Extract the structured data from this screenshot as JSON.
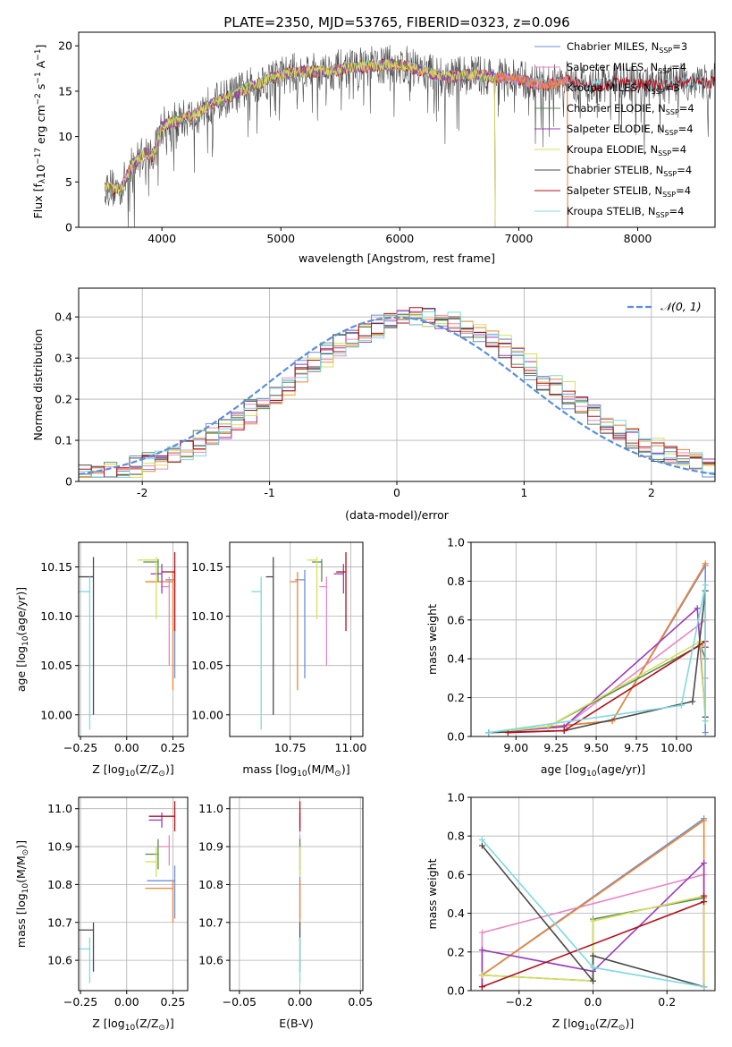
{
  "figure": {
    "title": "PLATE=2350, MJD=53765, FIBERID=0323, z=0.096",
    "colors": {
      "Chabrier MILES": "#6f8fd8",
      "Salpeter MILES": "#e986c4",
      "Kroupa MILES": "#ee8530",
      "Chabrier ELODIE": "#5a8a5a",
      "Salpeter ELODIE": "#9a3bbc",
      "Kroupa ELODIE": "#d4e05a",
      "Chabrier STELIB": "#4a4a4a",
      "Salpeter STELIB": "#b0101a",
      "Kroupa STELIB": "#7dd9e0",
      "normal": "#5b8fd8"
    }
  },
  "chart_data": [
    {
      "id": "spectrum",
      "type": "line",
      "xlabel": "wavelength [Angstrom, rest frame]",
      "ylabel": "Flux [f",
      "ylabel_parts": [
        "Flux [f",
        "λ",
        "10",
        "−17",
        " erg cm",
        "−2",
        " s",
        "−1",
        " A",
        "−1",
        "]"
      ],
      "xlim": [
        3300,
        8650
      ],
      "ylim": [
        0,
        21.5
      ],
      "xticks": [
        4000,
        5000,
        6000,
        7000,
        8000
      ],
      "yticks": [
        0,
        5,
        10,
        15,
        20
      ],
      "legend_position": "top-right",
      "legend": [
        {
          "name": "Chabrier MILES",
          "nssp": "3"
        },
        {
          "name": "Salpeter MILES",
          "nssp": "4"
        },
        {
          "name": "Kroupa MILES",
          "nssp": "3"
        },
        {
          "name": "Chabrier ELODIE",
          "nssp": "4"
        },
        {
          "name": "Salpeter ELODIE",
          "nssp": "4"
        },
        {
          "name": "Kroupa ELODIE",
          "nssp": "4"
        },
        {
          "name": "Chabrier STELIB",
          "nssp": "4"
        },
        {
          "name": "Salpeter STELIB",
          "nssp": "4"
        },
        {
          "name": "Kroupa STELIB",
          "nssp": "4"
        }
      ],
      "continuum": [
        [
          3520,
          4.5
        ],
        [
          3650,
          4.2
        ],
        [
          3750,
          6.8
        ],
        [
          3850,
          8.2
        ],
        [
          3930,
          7.8
        ],
        [
          4000,
          11.2
        ],
        [
          4100,
          11.6
        ],
        [
          4250,
          12.2
        ],
        [
          4400,
          13.5
        ],
        [
          4600,
          14.6
        ],
        [
          4800,
          15.8
        ],
        [
          5000,
          16.8
        ],
        [
          5200,
          17.2
        ],
        [
          5400,
          17.2
        ],
        [
          5600,
          17.6
        ],
        [
          5800,
          17.8
        ],
        [
          6000,
          18.0
        ],
        [
          6200,
          17.2
        ],
        [
          6400,
          16.5
        ],
        [
          6600,
          16.9
        ],
        [
          6800,
          16.5
        ],
        [
          7000,
          16.3
        ],
        [
          7200,
          15.6
        ],
        [
          7400,
          16.2
        ],
        [
          7600,
          15.5
        ],
        [
          7800,
          15.9
        ],
        [
          8100,
          15.6
        ],
        [
          8400,
          16.0
        ]
      ]
    },
    {
      "id": "residuals",
      "type": "bar",
      "xlabel": "(data-model)/error",
      "ylabel": "Normed distribution",
      "xlim": [
        -2.5,
        2.5
      ],
      "ylim": [
        0,
        0.47
      ],
      "xticks": [
        -2,
        -1,
        0,
        1,
        2
      ],
      "yticks": [
        0.0,
        0.1,
        0.2,
        0.3,
        0.4
      ],
      "legend": "𝒩(0, 1)",
      "legend_position": "top-right",
      "grid": true
    },
    {
      "id": "age-Z",
      "type": "scatter",
      "xlabel": "Z [log",
      "xlabel_parts": [
        "Z [log",
        "10",
        "(Z/Z",
        "⊙",
        ")]"
      ],
      "ylabel_parts": [
        "age  [log",
        "10",
        "(age/yr)]"
      ],
      "xlim": [
        -0.26,
        0.33
      ],
      "ylim": [
        9.978,
        10.175
      ],
      "xticks": [
        -0.25,
        0.0,
        0.25
      ],
      "xtick_labels": [
        "−0.25",
        "0.00",
        "0.25"
      ],
      "yticks": [
        10.0,
        10.05,
        10.1,
        10.15
      ],
      "ytick_labels": [
        "10.00",
        "10.05",
        "10.10",
        "10.15"
      ],
      "grid": true,
      "points": [
        {
          "model": "Chabrier MILES",
          "x": 0.26,
          "y": 10.137,
          "xerr": 0.05,
          "yerr": [
            0.1,
            0.01
          ]
        },
        {
          "model": "Salpeter MILES",
          "x": 0.23,
          "y": 10.13,
          "xerr": 0.04,
          "yerr": [
            0.08,
            0.01
          ]
        },
        {
          "model": "Kroupa MILES",
          "x": 0.25,
          "y": 10.135,
          "xerr": 0.15,
          "yerr": [
            0.11,
            0.01
          ]
        },
        {
          "model": "Chabrier ELODIE",
          "x": 0.17,
          "y": 10.155,
          "xerr": 0.08,
          "yerr": [
            0.02,
            0.003
          ]
        },
        {
          "model": "Salpeter ELODIE",
          "x": 0.19,
          "y": 10.143,
          "xerr": 0.06,
          "yerr": [
            0.02,
            0.01
          ]
        },
        {
          "model": "Kroupa ELODIE",
          "x": 0.16,
          "y": 10.157,
          "xerr": 0.1,
          "yerr": [
            0.06,
            0.003
          ]
        },
        {
          "model": "Chabrier STELIB",
          "x": -0.18,
          "y": 10.14,
          "xerr": 0.28,
          "yerr": [
            0.14,
            0.02
          ]
        },
        {
          "model": "Salpeter STELIB",
          "x": 0.26,
          "y": 10.145,
          "xerr": 0.07,
          "yerr": [
            0.06,
            0.02
          ]
        },
        {
          "model": "Kroupa STELIB",
          "x": -0.2,
          "y": 10.125,
          "xerr": 0.27,
          "yerr": [
            0.14,
            0.015
          ]
        }
      ]
    },
    {
      "id": "age-mass",
      "type": "scatter",
      "xlabel_parts": [
        "mass [log",
        "10",
        "(M/M",
        "⊙",
        ")]"
      ],
      "xlim": [
        10.5,
        11.05
      ],
      "ylim": [
        9.978,
        10.175
      ],
      "xticks": [
        10.75,
        11.0
      ],
      "xtick_labels": [
        "10.75",
        "11.00"
      ],
      "yticks": [
        10.0,
        10.05,
        10.1,
        10.15
      ],
      "ytick_labels": [
        "10.00",
        "10.05",
        "10.10",
        "10.15"
      ],
      "grid": true,
      "points": [
        {
          "model": "Chabrier MILES",
          "x": 10.81,
          "y": 10.137,
          "xerr": 0.04,
          "yerr": [
            0.1,
            0.01
          ]
        },
        {
          "model": "Salpeter MILES",
          "x": 10.9,
          "y": 10.13,
          "xerr": 0.03,
          "yerr": [
            0.08,
            0.01
          ]
        },
        {
          "model": "Kroupa MILES",
          "x": 10.78,
          "y": 10.135,
          "xerr": 0.03,
          "yerr": [
            0.11,
            0.01
          ]
        },
        {
          "model": "Chabrier ELODIE",
          "x": 10.88,
          "y": 10.155,
          "xerr": 0.04,
          "yerr": [
            0.02,
            0.003
          ]
        },
        {
          "model": "Salpeter ELODIE",
          "x": 10.97,
          "y": 10.143,
          "xerr": 0.04,
          "yerr": [
            0.02,
            0.01
          ]
        },
        {
          "model": "Kroupa ELODIE",
          "x": 10.86,
          "y": 10.157,
          "xerr": 0.04,
          "yerr": [
            0.06,
            0.003
          ]
        },
        {
          "model": "Chabrier STELIB",
          "x": 10.68,
          "y": 10.14,
          "xerr": 0.03,
          "yerr": [
            0.14,
            0.02
          ]
        },
        {
          "model": "Salpeter STELIB",
          "x": 10.98,
          "y": 10.145,
          "xerr": 0.04,
          "yerr": [
            0.06,
            0.02
          ]
        },
        {
          "model": "Kroupa STELIB",
          "x": 10.63,
          "y": 10.125,
          "xerr": 0.04,
          "yerr": [
            0.14,
            0.015
          ]
        }
      ]
    },
    {
      "id": "massweight-age",
      "type": "line",
      "xlabel_parts": [
        "age  [log",
        "10",
        "(age/yr)]"
      ],
      "ylabel": "mass weight",
      "xlim": [
        8.72,
        10.24
      ],
      "ylim": [
        0,
        1.0
      ],
      "xticks": [
        9.0,
        9.25,
        9.5,
        9.75,
        10.0
      ],
      "xtick_labels": [
        "9.00",
        "9.25",
        "9.50",
        "9.75",
        "10.00"
      ],
      "yticks": [
        0.0,
        0.2,
        0.4,
        0.6,
        0.8,
        1.0
      ],
      "ytick_labels": [
        "0.0",
        "0.2",
        "0.4",
        "0.6",
        "0.8",
        "1.0"
      ],
      "grid": true,
      "series": [
        {
          "model": "Chabrier MILES",
          "x": [
            8.83,
            9.6,
            10.18,
            10.18
          ],
          "y": [
            0.02,
            0.08,
            0.88,
            0.02
          ]
        },
        {
          "model": "Salpeter MILES",
          "x": [
            8.83,
            9.3,
            10.18,
            10.18
          ],
          "y": [
            0.02,
            0.05,
            0.6,
            0.3
          ]
        },
        {
          "model": "Kroupa MILES",
          "x": [
            8.83,
            9.6,
            10.18
          ],
          "y": [
            0.02,
            0.08,
            0.89
          ]
        },
        {
          "model": "Chabrier ELODIE",
          "x": [
            8.83,
            9.2,
            10.15,
            10.18
          ],
          "y": [
            0.02,
            0.05,
            0.47,
            0.4
          ]
        },
        {
          "model": "Salpeter ELODIE",
          "x": [
            8.83,
            9.3,
            10.13,
            10.18
          ],
          "y": [
            0.02,
            0.05,
            0.66,
            0.1
          ]
        },
        {
          "model": "Kroupa ELODIE",
          "x": [
            8.83,
            9.2,
            10.15,
            10.18
          ],
          "y": [
            0.02,
            0.05,
            0.49,
            0.08
          ]
        },
        {
          "model": "Chabrier STELIB",
          "x": [
            8.83,
            9.3,
            10.1,
            10.18,
            10.18
          ],
          "y": [
            0.02,
            0.03,
            0.18,
            0.75,
            0.1
          ]
        },
        {
          "model": "Salpeter STELIB",
          "x": [
            8.95,
            9.3,
            10.18,
            10.18
          ],
          "y": [
            0.02,
            0.03,
            0.49,
            0.46
          ]
        },
        {
          "model": "Kroupa STELIB",
          "x": [
            8.83,
            10.03,
            10.18,
            10.18
          ],
          "y": [
            0.02,
            0.16,
            0.78,
            0.08
          ]
        }
      ]
    },
    {
      "id": "mass-Z",
      "type": "scatter",
      "xlabel_parts": [
        "Z [log",
        "10",
        "(Z/Z",
        "⊙",
        ")]"
      ],
      "ylabel_parts": [
        "mass [log",
        "10",
        "(M/M",
        "⊙",
        ")]"
      ],
      "xlim": [
        -0.26,
        0.33
      ],
      "ylim": [
        10.52,
        11.03
      ],
      "xticks": [
        -0.25,
        0.0,
        0.25
      ],
      "xtick_labels": [
        "−0.25",
        "0.00",
        "0.25"
      ],
      "yticks": [
        10.6,
        10.7,
        10.8,
        10.9,
        11.0
      ],
      "ytick_labels": [
        "10.6",
        "10.7",
        "10.8",
        "10.9",
        "11.0"
      ],
      "grid": true,
      "points": [
        {
          "model": "Chabrier MILES",
          "x": 0.26,
          "y": 10.81,
          "xerr": 0.15,
          "yerr": [
            0.1,
            0.04
          ]
        },
        {
          "model": "Salpeter MILES",
          "x": 0.23,
          "y": 10.9,
          "xerr": 0.06,
          "yerr": [
            0.05,
            0.03
          ]
        },
        {
          "model": "Kroupa MILES",
          "x": 0.25,
          "y": 10.79,
          "xerr": 0.15,
          "yerr": [
            0.09,
            0.02
          ]
        },
        {
          "model": "Chabrier ELODIE",
          "x": 0.17,
          "y": 10.88,
          "xerr": 0.07,
          "yerr": [
            0.04,
            0.04
          ]
        },
        {
          "model": "Salpeter ELODIE",
          "x": 0.19,
          "y": 10.97,
          "xerr": 0.07,
          "yerr": [
            0.02,
            0.02
          ]
        },
        {
          "model": "Kroupa ELODIE",
          "x": 0.16,
          "y": 10.86,
          "xerr": 0.06,
          "yerr": [
            0.04,
            0.04
          ]
        },
        {
          "model": "Chabrier STELIB",
          "x": -0.18,
          "y": 10.68,
          "xerr": 0.28,
          "yerr": [
            0.11,
            0.02
          ]
        },
        {
          "model": "Salpeter STELIB",
          "x": 0.26,
          "y": 10.98,
          "xerr": 0.14,
          "yerr": [
            0.04,
            0.04
          ]
        },
        {
          "model": "Kroupa STELIB",
          "x": -0.2,
          "y": 10.63,
          "xerr": 0.3,
          "yerr": [
            0.09,
            0.03
          ]
        }
      ]
    },
    {
      "id": "mass-ebv",
      "type": "scatter",
      "xlabel": "E(B-V)",
      "xlim": [
        -0.058,
        0.052
      ],
      "ylim": [
        10.52,
        11.03
      ],
      "xticks": [
        -0.05,
        0.0,
        0.05
      ],
      "xtick_labels": [
        "−0.05",
        "0.00",
        "0.05"
      ],
      "yticks": [
        10.6,
        10.7,
        10.8,
        10.9,
        11.0
      ],
      "ytick_labels": [
        "10.6",
        "10.7",
        "10.8",
        "10.9",
        "11.0"
      ],
      "grid": true,
      "points": [
        {
          "model": "Chabrier MILES",
          "x": 0.0,
          "y": 10.81,
          "xerr": 0.0,
          "yerr": [
            0.1,
            0.04
          ]
        },
        {
          "model": "Salpeter MILES",
          "x": 0.0,
          "y": 10.9,
          "xerr": 0.0,
          "yerr": [
            0.05,
            0.03
          ]
        },
        {
          "model": "Kroupa MILES",
          "x": 0.0,
          "y": 10.79,
          "xerr": 0.0,
          "yerr": [
            0.09,
            0.02
          ]
        },
        {
          "model": "Chabrier ELODIE",
          "x": 0.0,
          "y": 10.88,
          "xerr": 0.0,
          "yerr": [
            0.04,
            0.04
          ]
        },
        {
          "model": "Salpeter ELODIE",
          "x": 0.0,
          "y": 10.97,
          "xerr": 0.0,
          "yerr": [
            0.02,
            0.02
          ]
        },
        {
          "model": "Kroupa ELODIE",
          "x": 0.0,
          "y": 10.86,
          "xerr": 0.0,
          "yerr": [
            0.04,
            0.04
          ]
        },
        {
          "model": "Chabrier STELIB",
          "x": 0.0,
          "y": 10.68,
          "xerr": 0.0,
          "yerr": [
            0.11,
            0.02
          ]
        },
        {
          "model": "Salpeter STELIB",
          "x": 0.0,
          "y": 10.98,
          "xerr": 0.0,
          "yerr": [
            0.04,
            0.04
          ]
        },
        {
          "model": "Kroupa STELIB",
          "x": 0.0,
          "y": 10.63,
          "xerr": 0.0,
          "yerr": [
            0.09,
            0.03
          ]
        }
      ]
    },
    {
      "id": "massweight-Z",
      "type": "line",
      "xlabel_parts": [
        "Z [log",
        "10",
        "(Z/Z",
        "⊙",
        ")]"
      ],
      "ylabel": "mass weight",
      "xlim": [
        -0.33,
        0.33
      ],
      "ylim": [
        0,
        1.0
      ],
      "xticks": [
        -0.2,
        0.0,
        0.2
      ],
      "xtick_labels": [
        "−0.2",
        "0.0",
        "0.2"
      ],
      "yticks": [
        0.0,
        0.2,
        0.4,
        0.6,
        0.8,
        1.0
      ],
      "ytick_labels": [
        "0.0",
        "0.2",
        "0.4",
        "0.6",
        "0.8",
        "1.0"
      ],
      "grid": true,
      "series": [
        {
          "model": "Chabrier MILES",
          "x": [
            -0.3,
            0.3
          ],
          "y": [
            0.08,
            0.89
          ]
        },
        {
          "model": "Salpeter MILES",
          "x": [
            -0.3,
            -0.3,
            0.3,
            0.3
          ],
          "y": [
            0.02,
            0.3,
            0.6,
            0.02
          ]
        },
        {
          "model": "Kroupa MILES",
          "x": [
            -0.3,
            0.3,
            0.3
          ],
          "y": [
            0.08,
            0.88,
            0.02
          ]
        },
        {
          "model": "Chabrier ELODIE",
          "x": [
            -0.3,
            0.0,
            0.0,
            0.3
          ],
          "y": [
            0.08,
            0.05,
            0.37,
            0.48
          ]
        },
        {
          "model": "Salpeter ELODIE",
          "x": [
            -0.3,
            -0.3,
            0.0,
            0.3,
            0.3
          ],
          "y": [
            0.02,
            0.21,
            0.1,
            0.66,
            0.02
          ]
        },
        {
          "model": "Kroupa ELODIE",
          "x": [
            -0.3,
            0.0,
            0.0,
            0.3,
            0.3
          ],
          "y": [
            0.08,
            0.05,
            0.36,
            0.49,
            0.02
          ]
        },
        {
          "model": "Chabrier STELIB",
          "x": [
            -0.3,
            0.0,
            0.0,
            0.3
          ],
          "y": [
            0.75,
            0.05,
            0.18,
            0.02
          ]
        },
        {
          "model": "Salpeter STELIB",
          "x": [
            -0.3,
            0.3,
            0.3
          ],
          "y": [
            0.02,
            0.46,
            0.49
          ]
        },
        {
          "model": "Kroupa STELIB",
          "x": [
            -0.3,
            0.0,
            0.3
          ],
          "y": [
            0.78,
            0.12,
            0.02
          ]
        }
      ]
    }
  ]
}
